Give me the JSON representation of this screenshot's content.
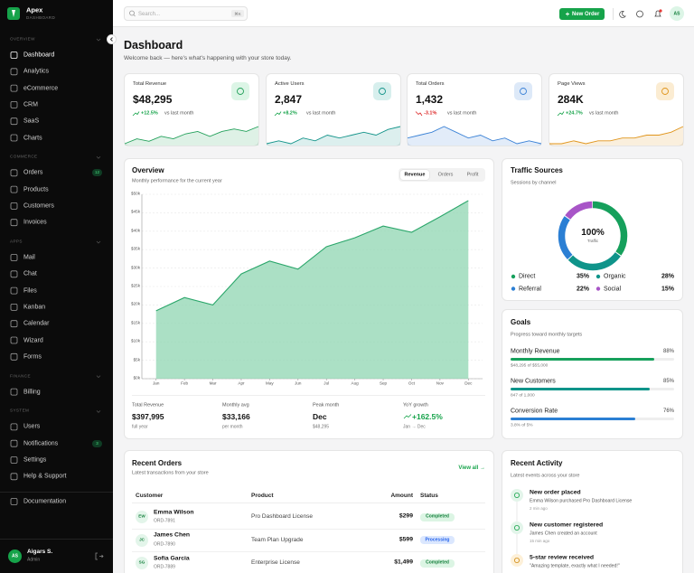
{
  "sidebar": {
    "brand": "Apex",
    "brand_sub": "DASHBOARD",
    "sections": [
      {
        "title": "OVERVIEW",
        "items": [
          {
            "label": "Dashboard"
          },
          {
            "label": "Analytics"
          },
          {
            "label": "eCommerce"
          },
          {
            "label": "CRM"
          },
          {
            "label": "SaaS"
          },
          {
            "label": "Charts"
          }
        ]
      },
      {
        "title": "COMMERCE",
        "items": [
          {
            "label": "Orders",
            "badge": "12"
          },
          {
            "label": "Products"
          },
          {
            "label": "Customers"
          },
          {
            "label": "Invoices"
          }
        ]
      },
      {
        "title": "APPS",
        "items": [
          {
            "label": "Mail"
          },
          {
            "label": "Chat"
          },
          {
            "label": "Files"
          },
          {
            "label": "Kanban"
          },
          {
            "label": "Calendar"
          },
          {
            "label": "Wizard"
          },
          {
            "label": "Forms"
          }
        ]
      },
      {
        "title": "FINANCE",
        "items": [
          {
            "label": "Billing"
          }
        ]
      },
      {
        "title": "SYSTEM",
        "items": [
          {
            "label": "Users"
          },
          {
            "label": "Notifications",
            "badge": "3"
          },
          {
            "label": "Settings"
          },
          {
            "label": "Help & Support"
          }
        ]
      }
    ],
    "documentation": "Documentation",
    "user": {
      "initials": "AS",
      "name": "Aigars S.",
      "role": "Admin"
    }
  },
  "topbar": {
    "search": "Search...",
    "shortcut": "⌘K",
    "new_order": "New Order",
    "avatar": "AS"
  },
  "header": {
    "title": "Dashboard",
    "subtitle": "Welcome back — here's what's happening with your store today."
  },
  "stats": [
    {
      "label": "Total Revenue",
      "value": "$48,295",
      "change": "+12.5%",
      "note": "vs last month",
      "color": "#22a05a",
      "sparkline": [
        3,
        5,
        4,
        6,
        5,
        7,
        8,
        6,
        8,
        9,
        8,
        10
      ]
    },
    {
      "label": "Active Users",
      "value": "2,847",
      "change": "+8.2%",
      "note": "vs last month",
      "color": "#14948a",
      "sparkline": [
        4,
        5,
        4,
        6,
        5,
        7,
        6,
        7,
        8,
        7,
        9,
        10
      ]
    },
    {
      "label": "Total Orders",
      "value": "1,432",
      "change": "-3.1%",
      "note": "vs last month",
      "color": "#3b82d6",
      "sparkline": [
        6,
        7,
        8,
        10,
        8,
        6,
        7,
        5,
        6,
        4,
        5,
        4
      ]
    },
    {
      "label": "Page Views",
      "value": "284K",
      "change": "+24.7%",
      "note": "vs last month",
      "color": "#e0951c",
      "sparkline": [
        3,
        3,
        4,
        3,
        4,
        4,
        5,
        5,
        6,
        6,
        7,
        9
      ]
    }
  ],
  "overview": {
    "title": "Overview",
    "subtitle": "Monthly performance for the current year",
    "tabs": [
      "Revenue",
      "Orders",
      "Profit"
    ],
    "summary": [
      {
        "label": "Total Revenue",
        "value": "$397,995",
        "note": "full year"
      },
      {
        "label": "Monthly avg",
        "value": "$33,166",
        "note": "per month"
      },
      {
        "label": "Peak month",
        "value": "Dec",
        "note": "$48,295"
      },
      {
        "label": "YoY growth",
        "value": "+162.5%",
        "note": "Jan → Dec"
      }
    ]
  },
  "chart_data": [
    {
      "type": "area",
      "categories": [
        "Jan",
        "Feb",
        "Mar",
        "Apr",
        "May",
        "Jun",
        "Jul",
        "Aug",
        "Sep",
        "Oct",
        "Nov",
        "Dec"
      ],
      "values": [
        18.4,
        22,
        20,
        28.4,
        31.9,
        29.7,
        35.8,
        38.2,
        41.4,
        39.7,
        43.9,
        48.3
      ],
      "color": "#2aa66a",
      "ylim": [
        0,
        50
      ],
      "yticks": [
        {
          "value": 0,
          "label": "$0k"
        },
        {
          "value": 5,
          "label": "$5k"
        },
        {
          "value": 10,
          "label": "$10k"
        },
        {
          "value": 15,
          "label": "$15k"
        },
        {
          "value": 20,
          "label": "$20k"
        },
        {
          "value": 25,
          "label": "$25k"
        },
        {
          "value": 30,
          "label": "$30k"
        },
        {
          "value": 35,
          "label": "$35k"
        },
        {
          "value": 40,
          "label": "$40k"
        },
        {
          "value": 45,
          "label": "$45k"
        },
        {
          "value": 50,
          "label": "$50k"
        }
      ],
      "grid": true
    },
    {
      "type": "pie",
      "categories": [
        "Direct",
        "Organic",
        "Referral",
        "Social"
      ],
      "values": [
        35,
        28,
        22,
        15
      ],
      "value_labels": [
        "35%",
        "28%",
        "22%",
        "15%"
      ],
      "colors": [
        "#16a05c",
        "#0f948a",
        "#2b7fd4",
        "#a855c7"
      ],
      "center_value": "100%",
      "center_label": "Traffic"
    }
  ],
  "traffic": {
    "title": "Traffic Sources",
    "subtitle": "Sessions by channel"
  },
  "goals": {
    "title": "Goals",
    "subtitle": "Progress toward monthly targets",
    "items": [
      {
        "name": "Monthly Revenue",
        "value": 88,
        "value_label": "88%",
        "detail": "$48,295 of $55,000",
        "color": "#16a05c"
      },
      {
        "name": "New Customers",
        "value": 85,
        "value_label": "85%",
        "detail": "847 of 1,000",
        "color": "#0f948a"
      },
      {
        "name": "Conversion Rate",
        "value": 76,
        "value_label": "76%",
        "detail": "3.8% of 5%",
        "color": "#2b7fd4"
      }
    ]
  },
  "orders": {
    "title": "Recent Orders",
    "subtitle": "Latest transactions from your store",
    "view_all": "View all →",
    "columns": [
      "Customer",
      "Product",
      "Amount",
      "Status"
    ],
    "rows": [
      {
        "initials": "EW",
        "name": "Emma Wilson",
        "id": "ORD-7891",
        "product": "Pro Dashboard License",
        "amount": "$299",
        "status": "Completed"
      },
      {
        "initials": "JC",
        "name": "James Chen",
        "id": "ORD-7890",
        "product": "Team Plan Upgrade",
        "amount": "$599",
        "status": "Processing"
      },
      {
        "initials": "SG",
        "name": "Sofia Garcia",
        "id": "ORD-7889",
        "product": "Enterprise License",
        "amount": "$1,499",
        "status": "Completed"
      }
    ]
  },
  "activity": {
    "title": "Recent Activity",
    "subtitle": "Latest events across your store",
    "items": [
      {
        "title": "New order placed",
        "detail": "Emma Wilson purchased Pro Dashboard License",
        "time": "2 min ago"
      },
      {
        "title": "New customer registered",
        "detail": "James Chen created an account",
        "time": "15 min ago"
      },
      {
        "title": "5-star review received",
        "detail": "\"Amazing template, exactly what I needed!\""
      }
    ]
  }
}
